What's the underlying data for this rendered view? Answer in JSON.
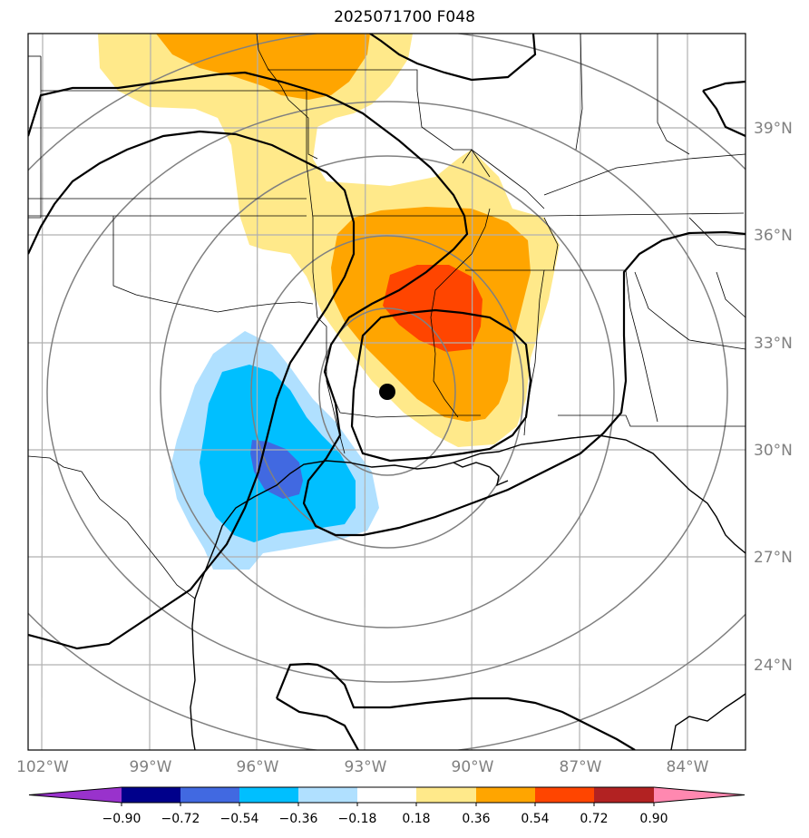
{
  "title": "2025071700 F048",
  "map": {
    "lon_ticks": [
      -102,
      -99,
      -96,
      -93,
      -90,
      -87,
      -84
    ],
    "lon_labels": [
      "102°W",
      "99°W",
      "96°W",
      "93°W",
      "90°W",
      "87°W",
      "84°W"
    ],
    "lat_ticks": [
      24,
      27,
      30,
      33,
      36,
      39
    ],
    "lat_labels": [
      "24°N",
      "27°N",
      "30°N",
      "33°N",
      "36°N",
      "39°N"
    ],
    "storm_center": {
      "lon": -92.2,
      "lat": 31.6
    },
    "gridline_color": "#b0b0b0",
    "range_ring_color": "#808080"
  },
  "colorbar": {
    "levels": [
      -0.9,
      -0.72,
      -0.54,
      -0.36,
      -0.18,
      0.18,
      0.36,
      0.54,
      0.72,
      0.9
    ],
    "labels": [
      "−0.90",
      "−0.72",
      "−0.54",
      "−0.36",
      "−0.18",
      "0.18",
      "0.36",
      "0.54",
      "0.72",
      "0.90"
    ],
    "colors": [
      "#9932cc",
      "#00008b",
      "#4169e1",
      "#00bfff",
      "#b0e0ff",
      "#ffffff",
      "#ffe98a",
      "#ffa500",
      "#ff4500",
      "#b22222",
      "#ff88b0"
    ]
  }
}
